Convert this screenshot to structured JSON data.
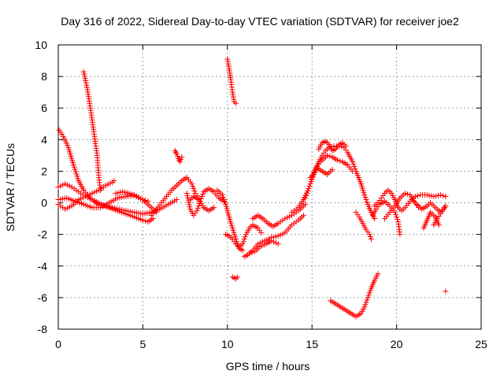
{
  "chart_data": {
    "type": "scatter",
    "title": "Day 316 of 2022, Sidereal Day-to-day VTEC variation (SDTVAR) for receiver joe2",
    "xlabel": "GPS time / hours",
    "ylabel": "SDTVAR / TECUs",
    "xlim": [
      0,
      25
    ],
    "ylim": [
      -8,
      10
    ],
    "xticks": [
      0,
      5,
      10,
      15,
      20,
      25
    ],
    "yticks": [
      -8,
      -6,
      -4,
      -2,
      0,
      2,
      4,
      6,
      8,
      10
    ],
    "grid": true,
    "marker": "+",
    "color": "#ff0000",
    "series_polylines": [
      [
        [
          0.05,
          4.6
        ],
        [
          0.3,
          4.2
        ],
        [
          0.6,
          3.5
        ],
        [
          0.9,
          2.4
        ],
        [
          1.2,
          1.4
        ],
        [
          1.5,
          0.8
        ],
        [
          1.8,
          0.4
        ],
        [
          2.1,
          0.1
        ],
        [
          2.4,
          -0.1
        ],
        [
          2.7,
          -0.2
        ],
        [
          3.0,
          -0.3
        ],
        [
          3.5,
          -0.5
        ],
        [
          4.0,
          -0.7
        ],
        [
          4.5,
          -0.9
        ],
        [
          5.0,
          -1.1
        ],
        [
          5.3,
          -1.2
        ],
        [
          5.6,
          -1.0
        ]
      ],
      [
        [
          0.0,
          1.0
        ],
        [
          0.4,
          1.2
        ],
        [
          0.8,
          1.0
        ],
        [
          1.2,
          0.7
        ],
        [
          1.6,
          0.4
        ],
        [
          2.0,
          0.2
        ],
        [
          2.4,
          0.0
        ],
        [
          2.8,
          -0.2
        ],
        [
          3.2,
          -0.3
        ],
        [
          3.6,
          -0.4
        ],
        [
          4.0,
          -0.5
        ],
        [
          4.5,
          -0.6
        ],
        [
          5.0,
          -0.7
        ],
        [
          5.5,
          -0.6
        ],
        [
          6.0,
          -0.4
        ],
        [
          6.5,
          -0.1
        ],
        [
          7.0,
          0.2
        ]
      ],
      [
        [
          0.0,
          -0.1
        ],
        [
          0.4,
          -0.4
        ],
        [
          0.8,
          -0.2
        ],
        [
          1.2,
          0.2
        ],
        [
          1.6,
          0.4
        ],
        [
          2.0,
          0.6
        ],
        [
          2.4,
          0.8
        ],
        [
          2.8,
          1.1
        ],
        [
          3.2,
          1.3
        ],
        [
          3.3,
          1.4
        ]
      ],
      [
        [
          0.0,
          0.2
        ],
        [
          0.5,
          0.3
        ],
        [
          1.0,
          0.1
        ],
        [
          1.5,
          -0.1
        ],
        [
          2.0,
          -0.3
        ],
        [
          2.5,
          -0.3
        ],
        [
          3.0,
          0.0
        ],
        [
          3.5,
          0.3
        ],
        [
          4.0,
          0.4
        ],
        [
          4.5,
          0.5
        ],
        [
          5.0,
          0.2
        ],
        [
          5.5,
          -0.3
        ],
        [
          5.8,
          -0.6
        ]
      ],
      [
        [
          1.5,
          8.3
        ],
        [
          1.7,
          7.3
        ],
        [
          1.9,
          6.0
        ],
        [
          2.1,
          4.5
        ],
        [
          2.3,
          3.0
        ],
        [
          2.4,
          1.6
        ],
        [
          2.5,
          0.8
        ]
      ],
      [
        [
          3.4,
          0.6
        ],
        [
          3.8,
          0.7
        ],
        [
          4.2,
          0.6
        ],
        [
          4.6,
          0.4
        ],
        [
          5.0,
          0.2
        ],
        [
          5.3,
          0.1
        ]
      ],
      [
        [
          5.5,
          -0.8
        ],
        [
          5.8,
          -0.4
        ],
        [
          6.1,
          0.0
        ],
        [
          6.4,
          0.4
        ],
        [
          6.7,
          0.8
        ],
        [
          7.0,
          1.1
        ],
        [
          7.3,
          1.4
        ],
        [
          7.6,
          1.6
        ],
        [
          7.9,
          1.2
        ],
        [
          8.1,
          0.6
        ],
        [
          8.3,
          0.3
        ]
      ],
      [
        [
          6.9,
          3.3
        ],
        [
          7.0,
          3.1
        ],
        [
          7.1,
          2.8
        ],
        [
          7.2,
          2.6
        ],
        [
          7.3,
          2.9
        ]
      ],
      [
        [
          7.6,
          0.6
        ],
        [
          7.8,
          -0.4
        ],
        [
          8.0,
          -0.8
        ],
        [
          8.2,
          -0.5
        ],
        [
          8.4,
          0.1
        ],
        [
          8.6,
          0.7
        ],
        [
          8.9,
          0.9
        ],
        [
          9.2,
          0.7
        ],
        [
          9.5,
          0.3
        ],
        [
          9.8,
          0.1
        ]
      ],
      [
        [
          7.8,
          0.2
        ],
        [
          8.0,
          0.4
        ],
        [
          8.3,
          0.2
        ],
        [
          8.6,
          -0.3
        ],
        [
          8.9,
          -0.5
        ],
        [
          9.2,
          -0.3
        ]
      ],
      [
        [
          9.4,
          0.8
        ],
        [
          9.7,
          0.5
        ],
        [
          9.9,
          -0.1
        ],
        [
          10.1,
          -0.9
        ],
        [
          10.3,
          -1.6
        ],
        [
          10.5,
          -2.3
        ],
        [
          10.7,
          -2.9
        ],
        [
          10.9,
          -3.0
        ]
      ],
      [
        [
          10.0,
          9.1
        ],
        [
          10.1,
          8.5
        ],
        [
          10.2,
          7.8
        ],
        [
          10.3,
          7.0
        ],
        [
          10.4,
          6.4
        ],
        [
          10.5,
          6.3
        ]
      ],
      [
        [
          10.3,
          -4.7
        ],
        [
          10.5,
          -4.8
        ],
        [
          10.6,
          -4.7
        ]
      ],
      [
        [
          9.9,
          -2.0
        ],
        [
          10.1,
          -2.1
        ],
        [
          10.3,
          -2.3
        ],
        [
          10.5,
          -2.6
        ],
        [
          10.7,
          -2.8
        ],
        [
          10.9,
          -2.6
        ],
        [
          11.1,
          -2.0
        ],
        [
          11.3,
          -1.6
        ],
        [
          11.5,
          -1.4
        ],
        [
          11.8,
          -1.6
        ],
        [
          12.0,
          -1.9
        ]
      ],
      [
        [
          11.0,
          -3.4
        ],
        [
          11.2,
          -3.3
        ],
        [
          11.5,
          -3.0
        ],
        [
          11.8,
          -2.6
        ],
        [
          12.2,
          -2.4
        ],
        [
          12.6,
          -2.2
        ],
        [
          13.0,
          -2.1
        ],
        [
          13.4,
          -1.9
        ],
        [
          13.8,
          -1.4
        ],
        [
          14.2,
          -1.1
        ],
        [
          14.5,
          -0.8
        ]
      ],
      [
        [
          11.5,
          -1.0
        ],
        [
          11.8,
          -0.8
        ],
        [
          12.1,
          -1.0
        ],
        [
          12.4,
          -1.3
        ],
        [
          12.7,
          -1.5
        ],
        [
          13.0,
          -1.3
        ],
        [
          13.4,
          -1.0
        ],
        [
          13.8,
          -0.8
        ],
        [
          14.2,
          -0.5
        ],
        [
          14.6,
          -0.1
        ]
      ],
      [
        [
          11.3,
          -3.2
        ],
        [
          11.6,
          -3.1
        ],
        [
          11.9,
          -2.8
        ],
        [
          12.3,
          -2.6
        ],
        [
          12.6,
          -2.4
        ],
        [
          13.0,
          -2.6
        ]
      ],
      [
        [
          13.8,
          -0.6
        ],
        [
          14.2,
          -0.3
        ],
        [
          14.5,
          0.2
        ],
        [
          14.8,
          0.9
        ],
        [
          15.0,
          1.5
        ],
        [
          15.2,
          2.1
        ],
        [
          15.4,
          2.6
        ],
        [
          15.6,
          3.0
        ],
        [
          15.8,
          3.3
        ],
        [
          16.0,
          3.5
        ],
        [
          16.3,
          3.6
        ],
        [
          16.6,
          3.6
        ],
        [
          16.9,
          3.5
        ],
        [
          17.1,
          3.2
        ],
        [
          17.4,
          2.6
        ],
        [
          17.6,
          2.0
        ],
        [
          17.9,
          1.2
        ],
        [
          18.1,
          0.5
        ],
        [
          18.3,
          -0.1
        ],
        [
          18.5,
          -0.6
        ],
        [
          18.7,
          -1.0
        ]
      ],
      [
        [
          14.6,
          0.3
        ],
        [
          14.9,
          1.2
        ],
        [
          15.1,
          1.9
        ],
        [
          15.3,
          2.3
        ],
        [
          15.5,
          2.6
        ],
        [
          15.7,
          2.8
        ],
        [
          15.9,
          3.0
        ],
        [
          16.2,
          2.9
        ],
        [
          16.5,
          2.7
        ],
        [
          16.8,
          2.6
        ],
        [
          17.1,
          2.4
        ],
        [
          17.4,
          2.0
        ]
      ],
      [
        [
          15.4,
          3.4
        ],
        [
          15.6,
          3.8
        ],
        [
          15.8,
          3.9
        ],
        [
          16.0,
          3.7
        ],
        [
          16.2,
          3.3
        ],
        [
          16.4,
          3.4
        ],
        [
          16.6,
          3.7
        ],
        [
          16.8,
          3.8
        ],
        [
          17.0,
          3.6
        ]
      ],
      [
        [
          14.9,
          1.6
        ],
        [
          15.1,
          1.8
        ],
        [
          15.3,
          2.2
        ],
        [
          15.6,
          2.0
        ],
        [
          15.9,
          1.8
        ],
        [
          16.2,
          2.1
        ]
      ],
      [
        [
          17.6,
          -0.6
        ],
        [
          17.8,
          -0.9
        ],
        [
          18.0,
          -1.3
        ],
        [
          18.2,
          -1.7
        ],
        [
          18.4,
          -2.0
        ],
        [
          18.5,
          -2.3
        ]
      ],
      [
        [
          16.1,
          -6.2
        ],
        [
          16.4,
          -6.4
        ],
        [
          16.7,
          -6.6
        ],
        [
          17.0,
          -6.8
        ],
        [
          17.3,
          -7.0
        ],
        [
          17.6,
          -7.2
        ],
        [
          17.9,
          -7.0
        ],
        [
          18.1,
          -6.6
        ],
        [
          18.3,
          -6.0
        ],
        [
          18.5,
          -5.4
        ],
        [
          18.7,
          -4.9
        ],
        [
          18.9,
          -4.5
        ]
      ],
      [
        [
          18.7,
          -0.2
        ],
        [
          18.9,
          0.0
        ],
        [
          19.1,
          0.3
        ],
        [
          19.3,
          0.6
        ],
        [
          19.5,
          0.8
        ],
        [
          19.7,
          0.6
        ],
        [
          19.9,
          0.2
        ],
        [
          20.1,
          -0.3
        ],
        [
          20.3,
          -0.5
        ],
        [
          20.5,
          -0.3
        ],
        [
          20.8,
          0.1
        ],
        [
          21.1,
          0.4
        ],
        [
          21.4,
          0.5
        ],
        [
          21.8,
          0.5
        ],
        [
          22.2,
          0.4
        ],
        [
          22.6,
          0.5
        ],
        [
          22.9,
          0.4
        ]
      ],
      [
        [
          18.6,
          -0.8
        ],
        [
          18.8,
          -0.4
        ],
        [
          19.0,
          -0.1
        ],
        [
          19.3,
          0.1
        ],
        [
          19.6,
          -0.2
        ],
        [
          19.9,
          -0.6
        ],
        [
          20.1,
          -1.2
        ],
        [
          20.2,
          -2.0
        ]
      ],
      [
        [
          19.3,
          -1.0
        ],
        [
          19.6,
          -0.6
        ],
        [
          19.9,
          -0.2
        ],
        [
          20.2,
          0.3
        ],
        [
          20.5,
          0.6
        ],
        [
          20.8,
          0.5
        ],
        [
          21.1,
          0.0
        ],
        [
          21.3,
          -0.3
        ]
      ],
      [
        [
          20.9,
          0.2
        ],
        [
          21.2,
          -0.1
        ],
        [
          21.5,
          -0.4
        ],
        [
          21.8,
          -0.2
        ],
        [
          22.0,
          0.0
        ],
        [
          22.3,
          -0.3
        ],
        [
          22.6,
          -0.6
        ],
        [
          22.8,
          -0.3
        ]
      ],
      [
        [
          21.6,
          -1.6
        ],
        [
          21.8,
          -1.1
        ],
        [
          22.0,
          -0.6
        ],
        [
          22.3,
          -0.9
        ],
        [
          22.5,
          -1.4
        ]
      ],
      [
        [
          22.2,
          -1.4
        ],
        [
          22.4,
          -1.0
        ],
        [
          22.6,
          -0.7
        ],
        [
          22.8,
          -0.4
        ],
        [
          22.9,
          -0.2
        ]
      ],
      [
        [
          22.9,
          -5.6
        ]
      ]
    ]
  }
}
